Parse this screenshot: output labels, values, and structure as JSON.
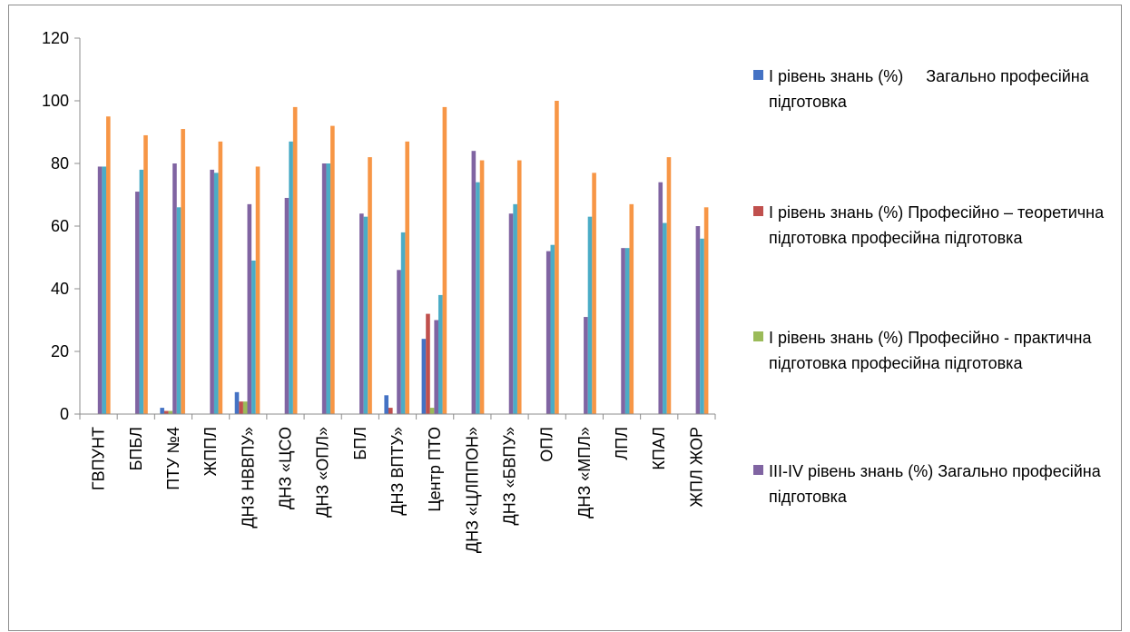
{
  "chart_data": {
    "type": "bar",
    "categories": [
      "ГВПУНТ",
      "БПБЛ",
      "ПТУ №4",
      "ЖППЛ",
      "ДНЗ НВВПУ»",
      "ДНЗ «ЦСО",
      "ДНЗ «ОПЛ»",
      "БПЛ",
      "ДНЗ ВПТУ»",
      "Центр ПТО",
      "ДНЗ «ЦЛППОН»",
      "ДНЗ «БВПУ»",
      "ОПЛ",
      "ДНЗ «МПЛ»",
      "ЛПЛ",
      "КПАЛ",
      "ЖПЛ ЖОР"
    ],
    "series": [
      {
        "name": "І рівень знань (%)     Загально професійна підготовка",
        "color": "#4472c4",
        "values": [
          0,
          0,
          2,
          0,
          7,
          0,
          0,
          0,
          6,
          24,
          0,
          0,
          0,
          0,
          0,
          0,
          0
        ]
      },
      {
        "name": "І рівень знань (%) Професійно – теоретична підготовка професійна підготовка",
        "color": "#c0504d",
        "values": [
          0,
          0,
          1,
          0,
          4,
          0,
          0,
          0,
          2,
          32,
          0,
          0,
          0,
          0,
          0,
          0,
          0
        ]
      },
      {
        "name": "І рівень знань (%) Професійно - практична підготовка професійна підготовка",
        "color": "#9bbb59",
        "values": [
          0,
          0,
          1,
          0,
          4,
          0,
          0,
          0,
          0,
          2,
          0,
          0,
          0,
          0,
          0,
          0,
          0
        ]
      },
      {
        "name": "ІІІ-ІV рівень знань (%) Загально професійна підготовка",
        "color": "#8064a2",
        "values": [
          79,
          71,
          80,
          78,
          67,
          69,
          80,
          64,
          46,
          30,
          84,
          64,
          52,
          31,
          53,
          74,
          60
        ]
      },
      {
        "name": "",
        "color": "#4bacc6",
        "values": [
          79,
          78,
          66,
          77,
          49,
          87,
          80,
          63,
          58,
          38,
          74,
          67,
          54,
          63,
          53,
          61,
          56
        ]
      },
      {
        "name": "",
        "color": "#f79646",
        "values": [
          95,
          89,
          91,
          87,
          79,
          98,
          92,
          82,
          87,
          98,
          81,
          81,
          100,
          77,
          67,
          82,
          66
        ]
      }
    ],
    "yaxis": {
      "min": 0,
      "max": 120,
      "step": 20,
      "ticks": [
        "0",
        "20",
        "40",
        "60",
        "80",
        "100",
        "120"
      ]
    },
    "grid": false,
    "legend_position": "right"
  }
}
